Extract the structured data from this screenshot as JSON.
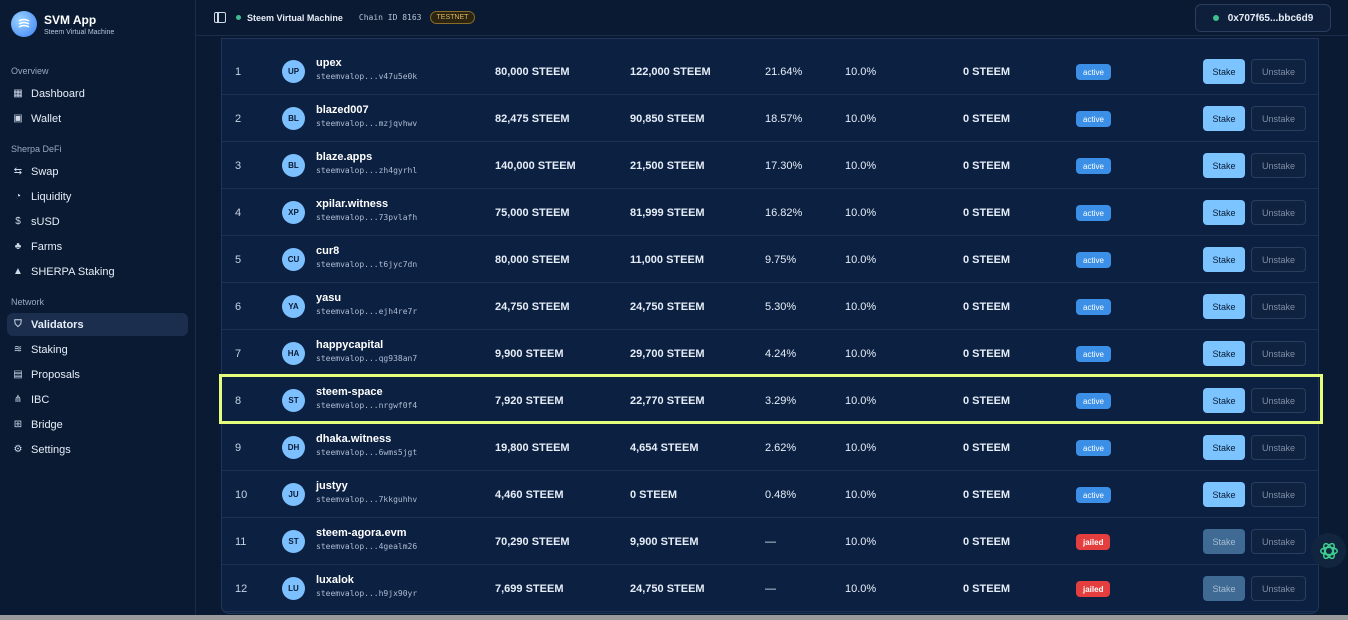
{
  "brand": {
    "name": "SVM App",
    "subtitle": "Steem Virtual Machine"
  },
  "sidebar": {
    "sections": [
      {
        "title": "Overview",
        "items": [
          {
            "label": "Dashboard",
            "icon": "dashboard-icon"
          },
          {
            "label": "Wallet",
            "icon": "wallet-icon"
          }
        ]
      },
      {
        "title": "Sherpa DeFi",
        "items": [
          {
            "label": "Swap",
            "icon": "swap-icon"
          },
          {
            "label": "Liquidity",
            "icon": "droplet-icon"
          },
          {
            "label": "sUSD",
            "icon": "dollar-icon"
          },
          {
            "label": "Farms",
            "icon": "sprout-icon"
          },
          {
            "label": "SHERPA Staking",
            "icon": "mountain-icon"
          }
        ]
      },
      {
        "title": "Network",
        "items": [
          {
            "label": "Validators",
            "icon": "shield-icon",
            "active": true
          },
          {
            "label": "Staking",
            "icon": "layers-icon"
          },
          {
            "label": "Proposals",
            "icon": "document-icon"
          },
          {
            "label": "IBC",
            "icon": "network-icon"
          },
          {
            "label": "Bridge",
            "icon": "bridge-icon"
          },
          {
            "label": "Settings",
            "icon": "gear-icon"
          }
        ]
      }
    ]
  },
  "topbar": {
    "network": "Steem Virtual Machine",
    "chain_id": "Chain ID 8163",
    "badge": "TESTNET",
    "wallet": "0x707f65...bbc6d9"
  },
  "validators": [
    {
      "rank": "1",
      "initials": "UP",
      "name": "upex",
      "address": "steemvalop...v47u5e0k",
      "stake": "80,000 STEEM",
      "delegated": "122,000 STEEM",
      "power": "21.64%",
      "commission": "10.0%",
      "self": "0 STEEM",
      "status": "active",
      "stake_label": "Stake",
      "unstake_label": "Unstake"
    },
    {
      "rank": "2",
      "initials": "BL",
      "name": "blazed007",
      "address": "steemvalop...mzjqvhwv",
      "stake": "82,475 STEEM",
      "delegated": "90,850 STEEM",
      "power": "18.57%",
      "commission": "10.0%",
      "self": "0 STEEM",
      "status": "active",
      "stake_label": "Stake",
      "unstake_label": "Unstake"
    },
    {
      "rank": "3",
      "initials": "BL",
      "name": "blaze.apps",
      "address": "steemvalop...zh4gyrhl",
      "stake": "140,000 STEEM",
      "delegated": "21,500 STEEM",
      "power": "17.30%",
      "commission": "10.0%",
      "self": "0 STEEM",
      "status": "active",
      "stake_label": "Stake",
      "unstake_label": "Unstake"
    },
    {
      "rank": "4",
      "initials": "XP",
      "name": "xpilar.witness",
      "address": "steemvalop...73pvlafh",
      "stake": "75,000 STEEM",
      "delegated": "81,999 STEEM",
      "power": "16.82%",
      "commission": "10.0%",
      "self": "0 STEEM",
      "status": "active",
      "stake_label": "Stake",
      "unstake_label": "Unstake"
    },
    {
      "rank": "5",
      "initials": "CU",
      "name": "cur8",
      "address": "steemvalop...t6jyc7dn",
      "stake": "80,000 STEEM",
      "delegated": "11,000 STEEM",
      "power": "9.75%",
      "commission": "10.0%",
      "self": "0 STEEM",
      "status": "active",
      "stake_label": "Stake",
      "unstake_label": "Unstake"
    },
    {
      "rank": "6",
      "initials": "YA",
      "name": "yasu",
      "address": "steemvalop...ejh4re7r",
      "stake": "24,750 STEEM",
      "delegated": "24,750 STEEM",
      "power": "5.30%",
      "commission": "10.0%",
      "self": "0 STEEM",
      "status": "active",
      "stake_label": "Stake",
      "unstake_label": "Unstake"
    },
    {
      "rank": "7",
      "initials": "HA",
      "name": "happycapital",
      "address": "steemvalop...qg938an7",
      "stake": "9,900 STEEM",
      "delegated": "29,700 STEEM",
      "power": "4.24%",
      "commission": "10.0%",
      "self": "0 STEEM",
      "status": "active",
      "stake_label": "Stake",
      "unstake_label": "Unstake"
    },
    {
      "rank": "8",
      "initials": "ST",
      "name": "steem-space",
      "address": "steemvalop...nrgwf0f4",
      "stake": "7,920 STEEM",
      "delegated": "22,770 STEEM",
      "power": "3.29%",
      "commission": "10.0%",
      "self": "0 STEEM",
      "status": "active",
      "stake_label": "Stake",
      "unstake_label": "Unstake"
    },
    {
      "rank": "9",
      "initials": "DH",
      "name": "dhaka.witness",
      "address": "steemvalop...6wms5jgt",
      "stake": "19,800 STEEM",
      "delegated": "4,654 STEEM",
      "power": "2.62%",
      "commission": "10.0%",
      "self": "0 STEEM",
      "status": "active",
      "stake_label": "Stake",
      "unstake_label": "Unstake"
    },
    {
      "rank": "10",
      "initials": "JU",
      "name": "justyy",
      "address": "steemvalop...7kkguhhv",
      "stake": "4,460 STEEM",
      "delegated": "0 STEEM",
      "power": "0.48%",
      "commission": "10.0%",
      "self": "0 STEEM",
      "status": "active",
      "stake_label": "Stake",
      "unstake_label": "Unstake"
    },
    {
      "rank": "11",
      "initials": "ST",
      "name": "steem-agora.evm",
      "address": "steemvalop...4gealm26",
      "stake": "70,290 STEEM",
      "delegated": "9,900 STEEM",
      "power": "—",
      "commission": "10.0%",
      "self": "0 STEEM",
      "status": "jailed",
      "stake_label": "Stake",
      "unstake_label": "Unstake"
    },
    {
      "rank": "12",
      "initials": "LU",
      "name": "luxalok",
      "address": "steemvalop...h9jx90yr",
      "stake": "7,699 STEEM",
      "delegated": "24,750 STEEM",
      "power": "—",
      "commission": "10.0%",
      "self": "0 STEEM",
      "status": "jailed",
      "stake_label": "Stake",
      "unstake_label": "Unstake"
    }
  ],
  "colors": {
    "accent": "#7cc4ff",
    "active_badge": "#3b8fe6",
    "jailed_badge": "#e53e3e",
    "highlight": "#e6ff7a"
  }
}
